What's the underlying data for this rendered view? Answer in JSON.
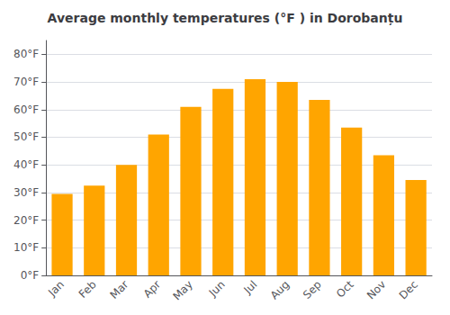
{
  "chart_data": {
    "type": "bar",
    "title": "Average monthly temperatures (°F ) in Dorobanțu",
    "categories": [
      "Jan",
      "Feb",
      "Mar",
      "Apr",
      "May",
      "Jun",
      "Jul",
      "Aug",
      "Sep",
      "Oct",
      "Nov",
      "Dec"
    ],
    "values": [
      29.5,
      32.5,
      40.0,
      51.0,
      61.0,
      67.5,
      71.0,
      70.0,
      63.5,
      53.5,
      43.5,
      34.5
    ],
    "color": "#FFA500",
    "ylim": [
      0,
      85
    ],
    "yticks": [
      {
        "value": 0,
        "label": "0°F"
      },
      {
        "value": 10,
        "label": "10°F"
      },
      {
        "value": 20,
        "label": "20°F"
      },
      {
        "value": 30,
        "label": "30°F"
      },
      {
        "value": 40,
        "label": "40°F"
      },
      {
        "value": 50,
        "label": "50°F"
      },
      {
        "value": 60,
        "label": "60°F"
      },
      {
        "value": 70,
        "label": "70°F"
      },
      {
        "value": 80,
        "label": "80°F"
      }
    ],
    "grid": true
  }
}
